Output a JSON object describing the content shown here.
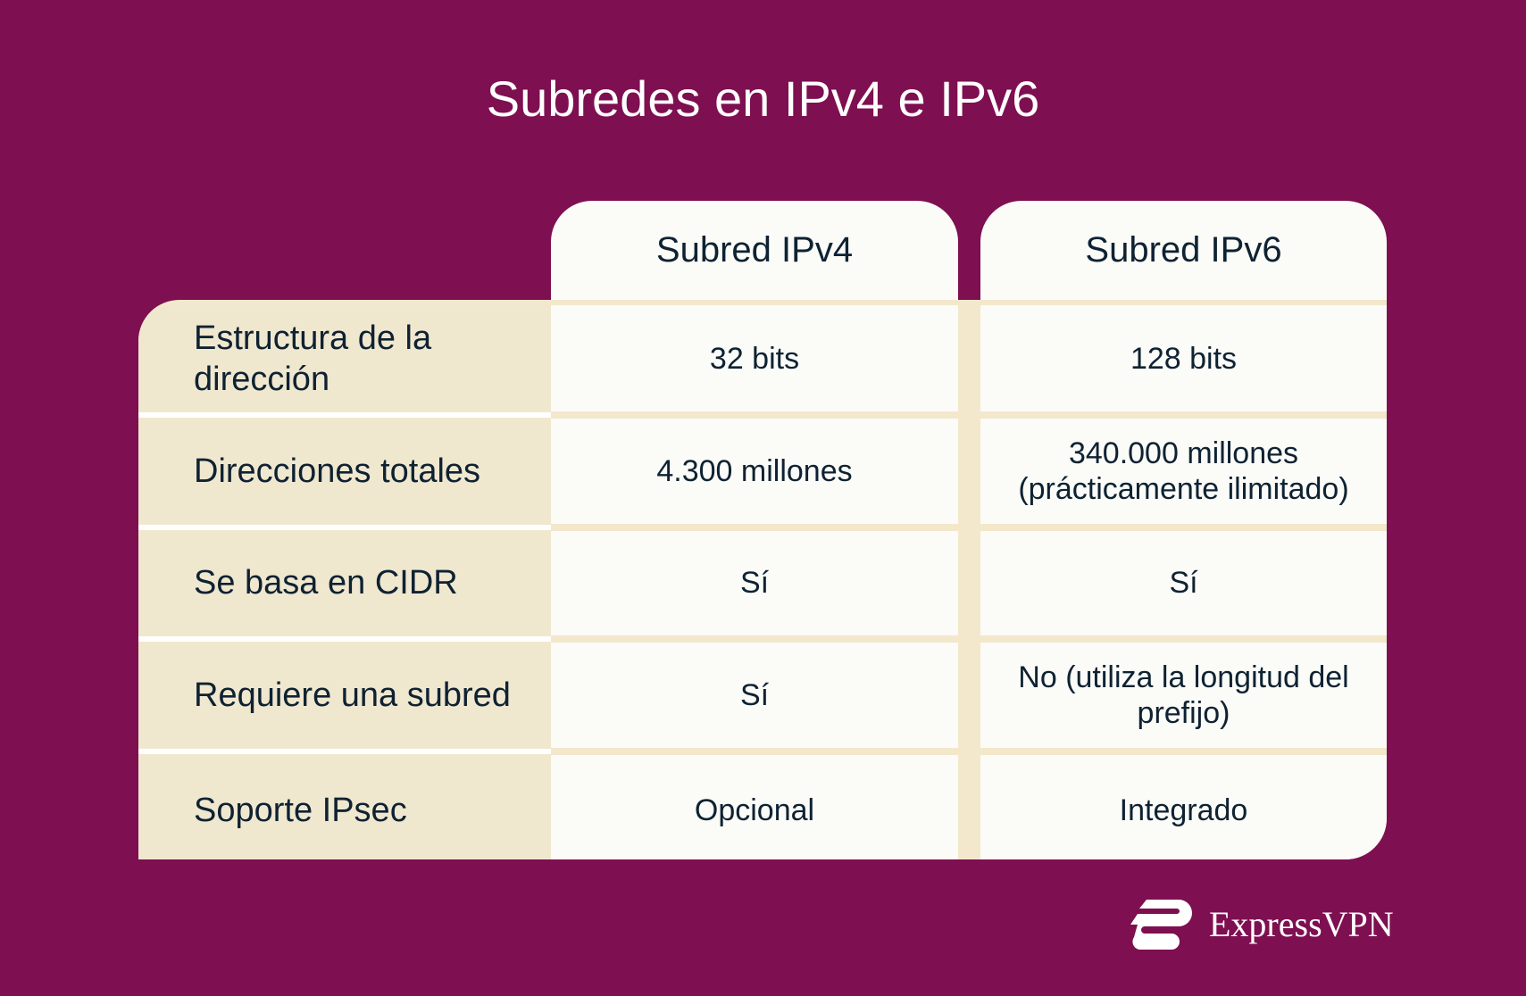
{
  "title": "Subredes en IPv4 e IPv6",
  "columns": [
    "Subred IPv4",
    "Subred IPv6"
  ],
  "rows": [
    {
      "label": "Estructura de la dirección",
      "ipv4": "32 bits",
      "ipv6": "128 bits"
    },
    {
      "label": "Direcciones totales",
      "ipv4": "4.300 millones",
      "ipv6": "340.000 millones (prácticamente ilimitado)"
    },
    {
      "label": "Se basa en CIDR",
      "ipv4": "Sí",
      "ipv6": "Sí"
    },
    {
      "label": "Requiere una subred",
      "ipv4": "Sí",
      "ipv6": "No (utiliza la longitud del prefijo)"
    },
    {
      "label": "Soporte IPsec",
      "ipv4": "Opcional",
      "ipv6": "Integrado"
    }
  ],
  "brand": {
    "name": "ExpressVPN",
    "icon": "expressvpn-logo-icon"
  },
  "colors": {
    "background": "#7e0f51",
    "label_column": "#f0e7cf",
    "cell": "#fbfbf8",
    "text": "#0e2232"
  }
}
